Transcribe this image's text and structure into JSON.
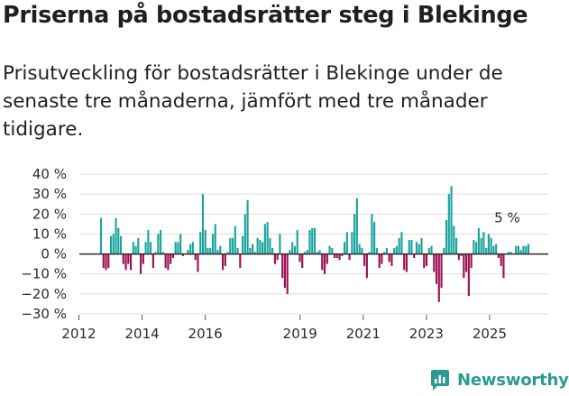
{
  "title": "Priserna på bostadsrätter steg i Blekinge",
  "subtitle": "Prisutveckling för bostadsrätter i Blekinge under de senaste tre månaderna, jämfört med tre månader tidigare.",
  "brand": "Newsworthy",
  "colors": {
    "positive": "#1aa59c",
    "negative": "#9c1152",
    "grid": "#dcdcdc",
    "zero": "#2b2b2b",
    "brand": "#2a9a92"
  },
  "chart_data": {
    "type": "bar",
    "title": "Priserna på bostadsrätter steg i Blekinge",
    "xlabel": "",
    "ylabel": "",
    "ylim": [
      -30,
      40
    ],
    "yticks": [
      -30,
      -20,
      -10,
      0,
      10,
      20,
      30,
      40
    ],
    "ytick_labels": [
      "−30 %",
      "−20 %",
      "−10 %",
      "0 %",
      "10 %",
      "20 %",
      "30 %",
      "40 %"
    ],
    "xaxis_start": 2011.5,
    "xaxis_end": 2026.4,
    "xticks": [
      2012,
      2014,
      2016,
      2019,
      2021,
      2023,
      2025
    ],
    "xtick_labels": [
      "2012",
      "2014",
      "2016",
      "2019",
      "2021",
      "2023",
      "2025"
    ],
    "annotation": {
      "text": "5 %",
      "x": 2025.7,
      "y": 5
    },
    "series": [
      {
        "name": "Prisutveckling",
        "values": [
          18,
          -7,
          -8,
          -7,
          9,
          10,
          18,
          13,
          9,
          -5,
          -8,
          -5,
          -8,
          6,
          4,
          8,
          -10,
          -5,
          6,
          12,
          6,
          -7,
          1,
          10,
          12,
          1,
          -7,
          -8,
          -5,
          -2,
          6,
          6,
          10,
          -1,
          0,
          2,
          5,
          6,
          -3,
          -9,
          11,
          30,
          12,
          3,
          3,
          10,
          15,
          2,
          4,
          -8,
          -6,
          1,
          8,
          8,
          14,
          3,
          -7,
          9,
          20,
          27,
          3,
          5,
          1,
          8,
          7,
          6,
          15,
          16,
          8,
          3,
          -5,
          -3,
          10,
          -12,
          -17,
          -20,
          2,
          6,
          4,
          12,
          -4,
          -7,
          1,
          2,
          12,
          13,
          13,
          1,
          2,
          -8,
          -10,
          -5,
          4,
          3,
          -2,
          -2,
          -3,
          -1,
          6,
          11,
          -3,
          11,
          20,
          28,
          5,
          3,
          -6,
          -12,
          1,
          20,
          16,
          3,
          -7,
          -5,
          1,
          3,
          -4,
          -6,
          3,
          4,
          8,
          11,
          -8,
          -9,
          7,
          7,
          -2,
          6,
          5,
          8,
          -7,
          -6,
          3,
          4,
          -9,
          -15,
          -24,
          -17,
          3,
          17,
          30,
          34,
          14,
          8,
          -3,
          -1,
          -12,
          -9,
          -21,
          -7,
          7,
          6,
          13,
          8,
          11,
          3,
          10,
          8,
          4,
          5,
          -2,
          -6,
          -12,
          0,
          1,
          1,
          0,
          4,
          4,
          2,
          4,
          4,
          5
        ]
      }
    ]
  }
}
